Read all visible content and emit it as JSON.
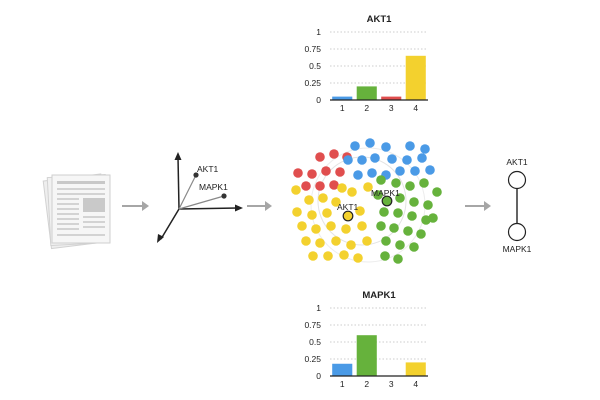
{
  "colors": {
    "blue": "#4a9ae6",
    "green": "#66b23c",
    "red": "#e04e4e",
    "yellow": "#f3d12e",
    "arrow": "#a6a6a6",
    "axis": "#222222"
  },
  "document_icon": "document-stack-icon",
  "embedding": {
    "point_a_label": "AKT1",
    "point_b_label": "MAPK1"
  },
  "cluster": {
    "label_akt1": "AKT1",
    "label_mapk1": "MAPK1"
  },
  "network": {
    "node_top_label": "AKT1",
    "node_bottom_label": "MAPK1"
  },
  "chart_data": [
    {
      "type": "bar",
      "title": "AKT1",
      "categories": [
        "1",
        "2",
        "3",
        "4"
      ],
      "values": [
        0.05,
        0.2,
        0.05,
        0.65
      ],
      "colors": [
        "#4a9ae6",
        "#66b23c",
        "#e04e4e",
        "#f3d12e"
      ],
      "yticks": [
        "0",
        "0.25",
        "0.5",
        "0.75",
        "1"
      ],
      "ylim": [
        0,
        1
      ],
      "grid": true
    },
    {
      "type": "bar",
      "title": "MAPK1",
      "categories": [
        "1",
        "2",
        "3",
        "4"
      ],
      "values": [
        0.18,
        0.6,
        0.0,
        0.2
      ],
      "colors": [
        "#4a9ae6",
        "#66b23c",
        "#e04e4e",
        "#f3d12e"
      ],
      "yticks": [
        "0",
        "0.25",
        "0.5",
        "0.75",
        "1"
      ],
      "ylim": [
        0,
        1
      ],
      "grid": true
    }
  ]
}
